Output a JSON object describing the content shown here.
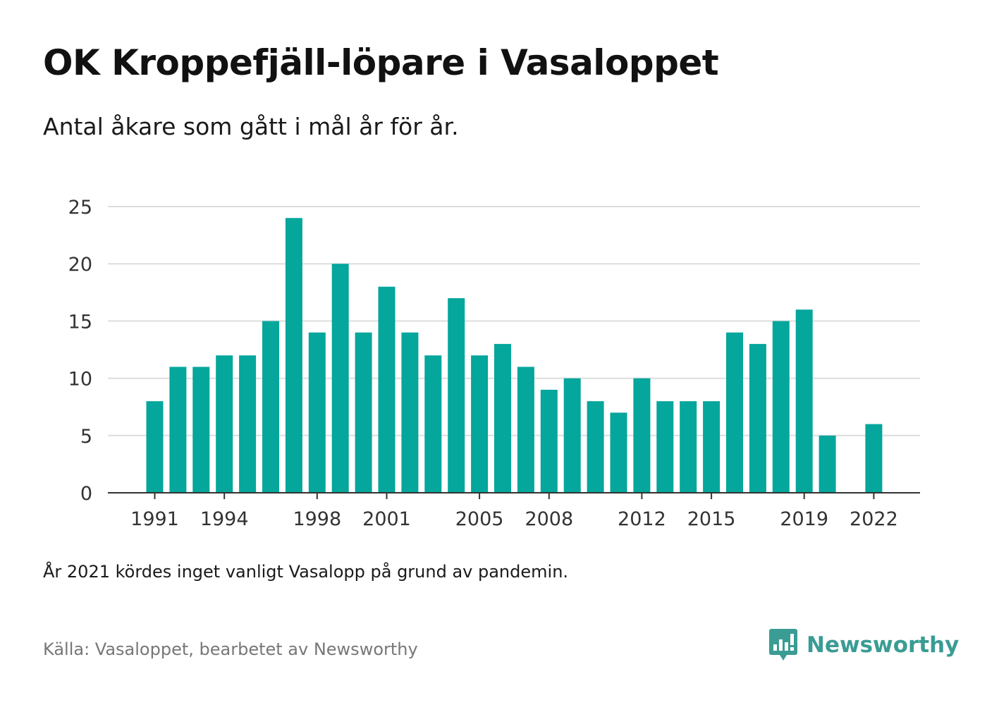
{
  "header": {
    "title": "OK Kroppefjäll-löpare i Vasaloppet",
    "subtitle": "Antal åkare som gått i mål år för år."
  },
  "footer": {
    "note": "År 2021 kördes inget vanligt Vasalopp på grund av pandemin.",
    "source": "Källa: Vasaloppet, bearbetet av Newsworthy",
    "brand_name": "Newsworthy",
    "brand_icon": "newsworthy-logo-icon"
  },
  "colors": {
    "bar": "#05a69c",
    "grid": "#dddddd",
    "axis": "#333333",
    "brand": "#3a9c94"
  },
  "chart_data": {
    "type": "bar",
    "title": "OK Kroppefjäll-löpare i Vasaloppet",
    "subtitle": "Antal åkare som gått i mål år för år.",
    "xlabel": "",
    "ylabel": "",
    "ylim": [
      0,
      25
    ],
    "yticks": [
      0,
      5,
      10,
      15,
      20,
      25
    ],
    "xtick_labels": [
      "1991",
      "1994",
      "1998",
      "2001",
      "2005",
      "2008",
      "2012",
      "2015",
      "2019",
      "2022"
    ],
    "grid": true,
    "categories": [
      "1991",
      "1992",
      "1993",
      "1994",
      "1995",
      "1996",
      "1997",
      "1998",
      "1999",
      "2000",
      "2001",
      "2002",
      "2003",
      "2004",
      "2005",
      "2006",
      "2007",
      "2008",
      "2009",
      "2010",
      "2011",
      "2012",
      "2013",
      "2014",
      "2015",
      "2016",
      "2017",
      "2018",
      "2019",
      "2020",
      "2021",
      "2022"
    ],
    "values": [
      8,
      11,
      11,
      12,
      12,
      15,
      24,
      14,
      20,
      14,
      18,
      14,
      12,
      17,
      12,
      13,
      11,
      9,
      10,
      8,
      7,
      10,
      8,
      8,
      8,
      14,
      13,
      15,
      16,
      5,
      null,
      6
    ]
  }
}
